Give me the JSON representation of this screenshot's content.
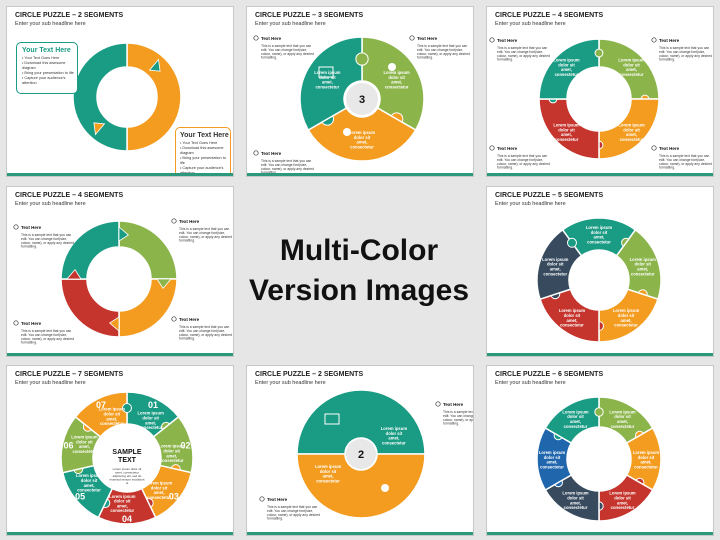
{
  "colors": {
    "teal": "#1a9b84",
    "green": "#8bb44a",
    "orange": "#f39c1f",
    "red": "#c5352d",
    "navy": "#374a5e",
    "blue": "#1f66ad",
    "bar": "#2b9a7c"
  },
  "center": {
    "line1": "Multi-Color",
    "line2": "Version Images"
  },
  "lorem": "Lorem ipsum dolor sit amet, consectetur",
  "text_here": "Text Here",
  "small_text": "This is a sample text that you can edit. You can change font(size, colour, name), or apply any desired formatting.",
  "slides": [
    {
      "title": "CIRCLE PUZZLE – 2 SEGMENTS",
      "subtitle": "Enter your sub headline here",
      "box1": {
        "title": "Your Text Here",
        "bullets": [
          "Your Text Goes Here",
          "Download this awesome diagram",
          "Bring your presentation to life",
          "Capture your audience's attention"
        ]
      },
      "box2": {
        "title": "Your Text Here",
        "bullets": [
          "Your Text Goes Here",
          "Download this awesome diagram",
          "Bring your presentation to life",
          "Capture your audience's attention"
        ]
      }
    },
    {
      "title": "CIRCLE PUZZLE – 3 SEGMENTS",
      "subtitle": "Enter your sub headline here",
      "number": "3"
    },
    {
      "title": "CIRCLE PUZZLE – 4 SEGMENTS",
      "subtitle": "Enter your sub headline here"
    },
    {
      "title": "CIRCLE PUZZLE – 4 SEGMENTS",
      "subtitle": "Enter your sub headline here"
    },
    {
      "title": "CIRCLE PUZZLE – 5 SEGMENTS",
      "subtitle": "Enter your sub headline here"
    },
    {
      "title": "CIRCLE PUZZLE – 7 SEGMENTS",
      "subtitle": "Enter your sub headline here",
      "numbers": [
        "01",
        "02",
        "03",
        "04",
        "05",
        "06",
        "07"
      ],
      "center_title": "SAMPLE TEXT",
      "center_sub": "Lorem ipsum dolor sit amet, consectetur adipiscing elit, sed do eiusmod tempor incididunt ut"
    },
    {
      "title": "CIRCLE PUZZLE – 2 SEGMENTS",
      "subtitle": "Enter your sub headline here",
      "number": "2"
    },
    {
      "title": "CIRCLE PUZZLE – 6 SEGMENTS",
      "subtitle": "Enter your sub headline here"
    }
  ]
}
